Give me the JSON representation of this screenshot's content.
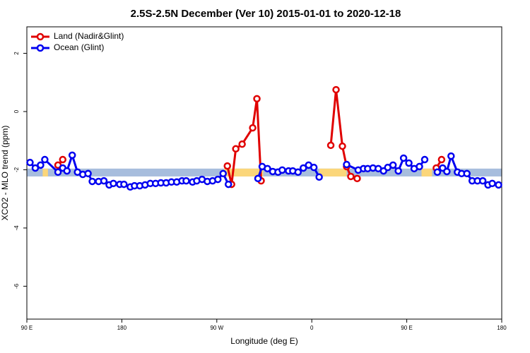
{
  "chart_data": {
    "type": "line",
    "title": "2.5S-2.5N December (Ver 10)   2015-01-01 to 2020-12-18",
    "x_label": "Longitude (deg E)",
    "y_label": "XCO2 - MLO trend (ppm)",
    "xlim": [
      90,
      540
    ],
    "ylim": [
      -7.13,
      2.91
    ],
    "xticks": [
      {
        "value": 90,
        "label": "90 E"
      },
      {
        "value": 180,
        "label": "180"
      },
      {
        "value": 270,
        "label": "90 W"
      },
      {
        "value": 360,
        "label": "0"
      },
      {
        "value": 450,
        "label": "90 E"
      },
      {
        "value": 540,
        "label": "180"
      }
    ],
    "yticks": [
      2,
      0,
      -2,
      -4,
      -6
    ],
    "legend": "top-left",
    "band": {
      "ylim": [
        -2.23,
        -1.96
      ],
      "ocean_color": "#a7bddd",
      "land_color": "#fbd67a",
      "land_spans": [
        [
          105,
          110
        ],
        [
          277,
          314
        ],
        [
          367,
          393
        ],
        [
          464,
          474
        ]
      ]
    },
    "series": [
      {
        "name": "Land (Nadir&Glint)",
        "color": "#e00000",
        "x": [
          119.5,
          124,
          null,
          280,
          284,
          288,
          294,
          304,
          308,
          312,
          null,
          378,
          383,
          389,
          393,
          397,
          403,
          null,
          478,
          483
        ],
        "values": [
          -1.84,
          -1.65,
          null,
          -1.87,
          -2.5,
          -1.28,
          -1.12,
          -0.56,
          0.44,
          -2.38,
          null,
          -1.16,
          0.75,
          -1.19,
          -1.89,
          -2.23,
          -2.3,
          null,
          -1.94,
          -1.65
        ]
      },
      {
        "name": "Ocean (Glint)",
        "color": "#0000f0",
        "x": [
          93,
          98,
          103,
          107,
          119.5,
          124,
          128,
          133,
          138,
          143,
          148,
          152,
          158,
          163,
          168,
          172,
          178,
          182,
          188,
          192,
          197,
          202,
          207,
          212,
          217,
          222,
          227,
          232,
          237,
          241,
          247,
          251,
          256,
          261,
          266,
          271,
          276,
          281,
          null,
          309,
          313,
          318,
          323,
          328,
          332,
          338,
          342,
          347,
          352,
          357,
          362,
          367,
          null,
          393,
          404,
          409,
          413,
          418,
          423,
          428,
          432,
          437,
          442,
          447,
          452,
          457,
          462,
          467,
          null,
          479,
          484,
          488,
          492,
          498,
          502,
          507,
          512,
          517,
          522,
          527,
          531,
          537
        ],
        "values": [
          -1.75,
          -1.94,
          -1.84,
          -1.65,
          -2.08,
          -1.94,
          -2.04,
          -1.5,
          -2.08,
          -2.16,
          -2.13,
          -2.4,
          -2.4,
          -2.38,
          -2.52,
          -2.47,
          -2.5,
          -2.5,
          -2.59,
          -2.55,
          -2.55,
          -2.52,
          -2.47,
          -2.47,
          -2.45,
          -2.45,
          -2.42,
          -2.42,
          -2.38,
          -2.38,
          -2.42,
          -2.38,
          -2.33,
          -2.4,
          -2.38,
          -2.33,
          -2.13,
          -2.5,
          null,
          -2.3,
          -1.89,
          -1.96,
          -2.06,
          -2.08,
          -2.01,
          -2.04,
          -2.04,
          -2.08,
          -1.94,
          -1.84,
          -1.92,
          -2.25,
          null,
          -1.82,
          -2.01,
          -1.96,
          -1.96,
          -1.94,
          -1.96,
          -2.04,
          -1.92,
          -1.84,
          -2.04,
          -1.6,
          -1.77,
          -1.96,
          -1.89,
          -1.65,
          null,
          -2.08,
          -1.94,
          -2.06,
          -1.53,
          -2.08,
          -2.13,
          -2.13,
          -2.38,
          -2.38,
          -2.38,
          -2.52,
          -2.47,
          -2.52
        ]
      }
    ]
  }
}
